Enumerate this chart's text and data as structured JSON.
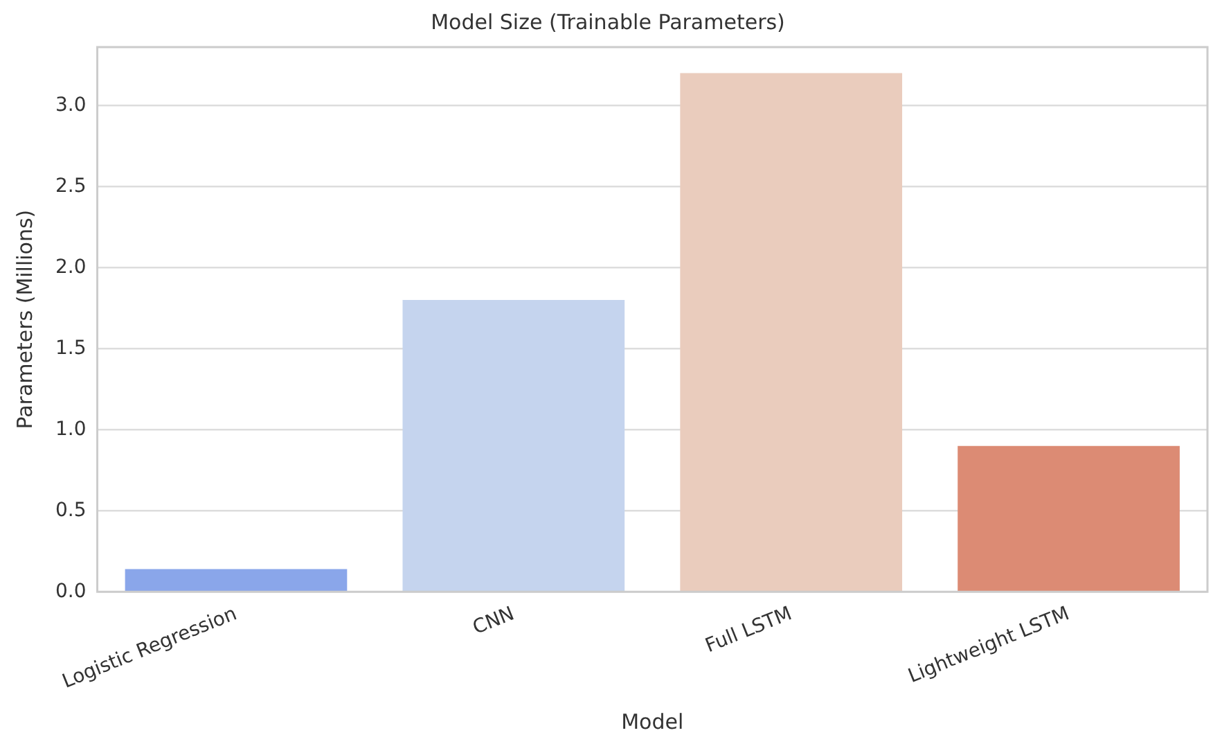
{
  "chart_data": {
    "type": "bar",
    "title": "Model Size (Trainable Parameters)",
    "xlabel": "Model",
    "ylabel": "Parameters (Millions)",
    "categories": [
      "Logistic Regression",
      "CNN",
      "Full LSTM",
      "Lightweight LSTM"
    ],
    "values": [
      0.14,
      1.8,
      3.2,
      0.9
    ],
    "colors": [
      "#8aa6ea",
      "#c5d4ee",
      "#eaccbd",
      "#dc8b74"
    ],
    "ylim": [
      0,
      3.36
    ],
    "yticks": [
      {
        "value": 0,
        "label": "0.0"
      },
      0.5,
      {
        "value": 1,
        "label": "1.0"
      },
      1.5,
      {
        "value": 2,
        "label": "2.0"
      },
      2.5,
      {
        "value": 3,
        "label": "3.0"
      }
    ],
    "grid": "y",
    "legend": false
  }
}
